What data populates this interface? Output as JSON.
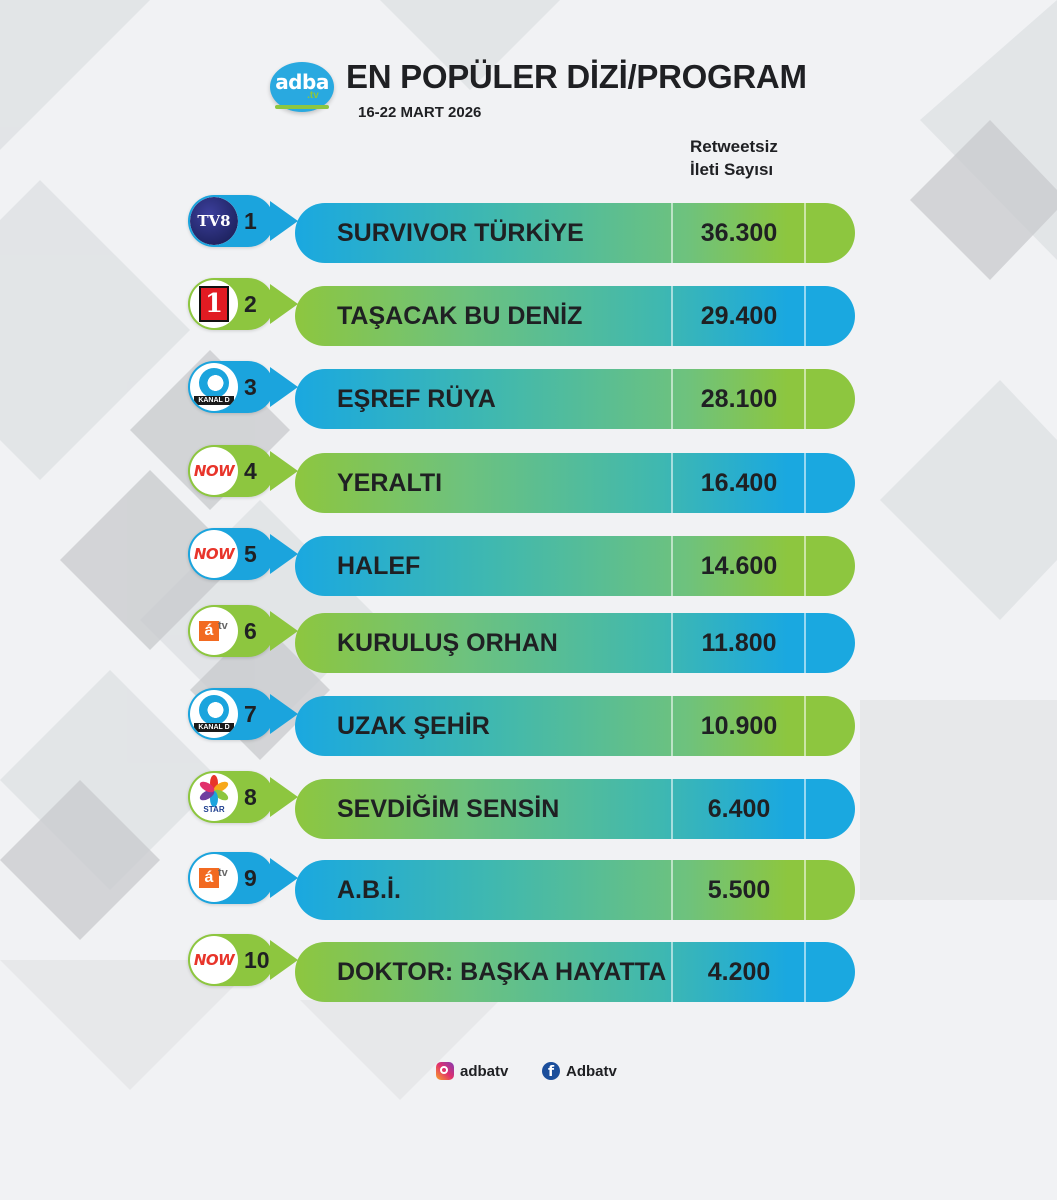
{
  "header": {
    "logo_text": "adba",
    "logo_sub": ".tv",
    "title": "EN POPÜLER DİZİ/PROGRAM",
    "date": "16-22 MART 2026",
    "column_header_line1": "Retweetsiz",
    "column_header_line2": "İleti Sayısı"
  },
  "chart_data": {
    "type": "bar",
    "title": "EN POPÜLER DİZİ/PROGRAM",
    "subtitle": "16-22 MART 2026",
    "ylabel": "Retweetsiz İleti Sayısı",
    "categories": [
      "SURVIVOR TÜRKİYE",
      "TAŞACAK BU DENİZ",
      "EŞREF RÜYA",
      "YERALTI",
      "HALEF",
      "KURULUŞ ORHAN",
      "UZAK ŞEHİR",
      "SEVDİĞİM SENSİN",
      "A.B.İ.",
      "DOKTOR: BAŞKA HAYATTA"
    ],
    "values": [
      36300,
      29400,
      28100,
      16400,
      14600,
      11800,
      10900,
      6400,
      5500,
      4200
    ]
  },
  "rows": [
    {
      "rank": "1",
      "name": "SURVIVOR TÜRKİYE",
      "value": "36.300",
      "channel": "tv8-logo",
      "channel_text": "TV8",
      "badge": "blue"
    },
    {
      "rank": "2",
      "name": "TAŞACAK BU DENİZ",
      "value": "29.400",
      "channel": "show-tv-logo",
      "channel_text": "1",
      "badge": "green"
    },
    {
      "rank": "3",
      "name": "EŞREF RÜYA",
      "value": "28.100",
      "channel": "kanal-d-logo",
      "channel_text": "KANAL D",
      "badge": "blue"
    },
    {
      "rank": "4",
      "name": "YERALTI",
      "value": "16.400",
      "channel": "now-logo",
      "channel_text": "NOW",
      "badge": "green"
    },
    {
      "rank": "5",
      "name": "HALEF",
      "value": "14.600",
      "channel": "now-logo",
      "channel_text": "NOW",
      "badge": "blue"
    },
    {
      "rank": "6",
      "name": "KURULUŞ ORHAN",
      "value": "11.800",
      "channel": "atv-logo",
      "channel_text": "á",
      "badge": "green"
    },
    {
      "rank": "7",
      "name": "UZAK ŞEHİR",
      "value": "10.900",
      "channel": "kanal-d-logo",
      "channel_text": "KANAL D",
      "badge": "blue"
    },
    {
      "rank": "8",
      "name": "SEVDİĞİM SENSİN",
      "value": "6.400",
      "channel": "star-logo",
      "channel_text": "STAR",
      "badge": "green"
    },
    {
      "rank": "9",
      "name": "A.B.İ.",
      "value": "5.500",
      "channel": "atv-logo",
      "channel_text": "á",
      "badge": "blue"
    },
    {
      "rank": "10",
      "name": "DOKTOR: BAŞKA HAYATTA",
      "value": "4.200",
      "channel": "now-logo",
      "channel_text": "NOW",
      "badge": "green"
    }
  ],
  "footer": {
    "instagram": "adbatv",
    "facebook": "Adbatv"
  },
  "colors": {
    "blue": "#1ba4dd",
    "green": "#8dc63f"
  }
}
